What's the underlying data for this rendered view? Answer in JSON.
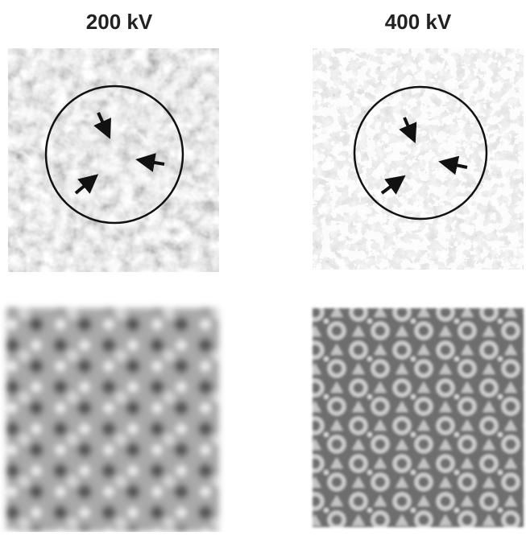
{
  "panels": {
    "left_label": "200 kV",
    "right_label": "400 kV"
  }
}
